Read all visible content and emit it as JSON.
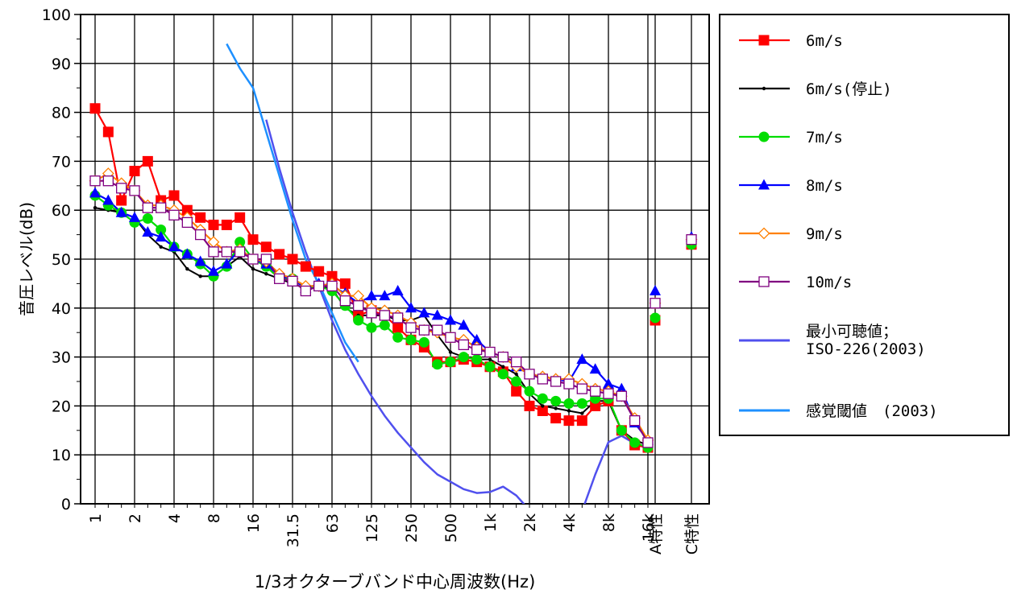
{
  "chart_data": {
    "type": "line",
    "xlabel": "1/3オクターブバンド中心周波数(Hz)",
    "ylabel": "音圧レベル(dB)",
    "ylim": [
      0,
      100
    ],
    "yticks": [
      0,
      10,
      20,
      30,
      40,
      50,
      60,
      70,
      80,
      90,
      100
    ],
    "grid": true,
    "legend_position": "right",
    "bands": [
      "1",
      "1.25",
      "1.6",
      "2",
      "2.5",
      "3.15",
      "4",
      "5",
      "6.3",
      "8",
      "10",
      "12.5",
      "16",
      "20",
      "25",
      "31.5",
      "40",
      "50",
      "63",
      "80",
      "100",
      "125",
      "160",
      "200",
      "250",
      "315",
      "400",
      "500",
      "630",
      "800",
      "1k",
      "1.25k",
      "1.6k",
      "2k",
      "2.5k",
      "3.15k",
      "4k",
      "5k",
      "6.3k",
      "8k",
      "10k",
      "12.5k",
      "16k"
    ],
    "x_tick_labels": [
      "1",
      "2",
      "4",
      "8",
      "16",
      "31.5",
      "63",
      "125",
      "250",
      "500",
      "1k",
      "2k",
      "4k",
      "8k",
      "16k",
      "A特性",
      "C特性"
    ],
    "series": [
      {
        "name": "6m/s",
        "color": "#ff0000",
        "marker": "square-filled",
        "values": [
          80.8,
          76,
          62,
          68,
          70,
          62,
          63,
          60,
          58.5,
          57,
          57,
          58.5,
          54,
          52.5,
          51,
          50,
          48.5,
          47.5,
          46.5,
          45,
          38.5,
          39.5,
          38.5,
          36,
          33.5,
          32,
          29,
          29,
          29.5,
          29,
          28,
          27,
          23,
          20,
          19,
          17.5,
          17,
          17,
          20,
          21,
          15,
          12,
          11.5
        ],
        "weighted": {
          "A": 37.5,
          "C": 53
        }
      },
      {
        "name": "6m/s(停止)",
        "color": "#000000",
        "marker": "dot",
        "values": [
          60.5,
          60,
          59.5,
          58.5,
          55,
          52.5,
          51.5,
          48,
          46.5,
          46.5,
          48.5,
          50.5,
          48,
          47,
          46,
          45,
          44,
          44.5,
          44,
          40,
          38.5,
          38.5,
          38.5,
          37.5,
          37.5,
          38.5,
          34.5,
          31,
          30,
          29.5,
          29.5,
          28,
          26.5,
          22.5,
          20,
          19.5,
          19,
          18.5,
          21,
          21,
          15,
          13,
          12
        ],
        "weighted": {
          "A": 40.5,
          "C": 53.5
        }
      },
      {
        "name": "7m/s",
        "color": "#00dd00",
        "marker": "circle-filled",
        "values": [
          63,
          61,
          59.5,
          57.5,
          58.3,
          56,
          52.5,
          51,
          49,
          46.5,
          48.5,
          53.5,
          50,
          48.5,
          46,
          46,
          44,
          44.5,
          43.5,
          40.5,
          37.5,
          36,
          36.5,
          34,
          33.5,
          33,
          28.5,
          29,
          30,
          29.5,
          28,
          26.5,
          25,
          23,
          21.5,
          21,
          20.5,
          20.5,
          21.5,
          21.5,
          15,
          12.5,
          11.5
        ],
        "weighted": {
          "A": 38,
          "C": 53
        }
      },
      {
        "name": "8m/s",
        "color": "#0000ff",
        "marker": "triangle-filled",
        "values": [
          63.5,
          62,
          59.5,
          58.5,
          55.5,
          54.5,
          52.5,
          51,
          49.5,
          47.5,
          49,
          52,
          50,
          49,
          46.5,
          46,
          44,
          45,
          44.5,
          43,
          41,
          42.5,
          42.5,
          43.5,
          40,
          39,
          38.5,
          37.5,
          36.5,
          33.5,
          31,
          30,
          28,
          26.5,
          26,
          25.5,
          25,
          29.5,
          27.5,
          24.5,
          23.5,
          16.5,
          13
        ],
        "weighted": {
          "A": 43.5,
          "C": 54.5
        }
      },
      {
        "name": "9m/s",
        "color": "#ff8000",
        "marker": "diamond-open",
        "values": [
          66,
          67.5,
          65.5,
          64,
          61,
          61,
          60,
          58.5,
          56,
          53.5,
          51.5,
          52,
          50,
          49.5,
          47,
          46,
          44.5,
          44.5,
          45,
          42.5,
          42.5,
          40,
          39.5,
          38.5,
          37,
          35.5,
          35,
          34,
          33.5,
          32,
          31,
          30,
          28,
          26.5,
          26,
          25.5,
          25.5,
          24.5,
          23.5,
          23,
          22,
          17.5,
          13
        ],
        "weighted": {
          "A": 41,
          "C": 54
        }
      },
      {
        "name": "10m/s",
        "color": "#800080",
        "marker": "square-open",
        "values": [
          66,
          66,
          64.5,
          64,
          60.5,
          60.5,
          59,
          57.5,
          55,
          51.5,
          51.5,
          51.5,
          50,
          50,
          46,
          45.5,
          43.5,
          44.5,
          44.5,
          41.5,
          40.5,
          39,
          38.5,
          38,
          36,
          35.5,
          35.5,
          34,
          32.5,
          31.5,
          31,
          30,
          29,
          26.5,
          25.5,
          25,
          24.5,
          23.5,
          23,
          22.5,
          22,
          17,
          12.5
        ],
        "weighted": {
          "A": 41,
          "C": 54
        }
      },
      {
        "name": "最小可聴値；\nISO-226(2003)",
        "color": "#5050ee",
        "marker": "none",
        "points": [
          {
            "band": "20",
            "y": 78.5
          },
          {
            "band": "25",
            "y": 68.5
          },
          {
            "band": "31.5",
            "y": 59.5
          },
          {
            "band": "40",
            "y": 51.5
          },
          {
            "band": "50",
            "y": 44.5
          },
          {
            "band": "63",
            "y": 37.5
          },
          {
            "band": "80",
            "y": 31.5
          },
          {
            "band": "100",
            "y": 26.5
          },
          {
            "band": "125",
            "y": 22
          },
          {
            "band": "160",
            "y": 18
          },
          {
            "band": "200",
            "y": 14.5
          },
          {
            "band": "250",
            "y": 11.5
          },
          {
            "band": "315",
            "y": 8.5
          },
          {
            "band": "400",
            "y": 6
          },
          {
            "band": "500",
            "y": 4.5
          },
          {
            "band": "630",
            "y": 3
          },
          {
            "band": "800",
            "y": 2.2
          },
          {
            "band": "1k",
            "y": 2.4
          },
          {
            "band": "1.25k",
            "y": 3.5
          },
          {
            "band": "1.6k",
            "y": 1.7
          },
          {
            "band": "2k",
            "y": -1.3
          },
          {
            "band": "2.5k",
            "y": -4.2
          },
          {
            "band": "3.15k",
            "y": -6
          },
          {
            "band": "4k",
            "y": -5.4
          },
          {
            "band": "5k",
            "y": -1.5
          },
          {
            "band": "6.3k",
            "y": 6
          },
          {
            "band": "8k",
            "y": 12.6
          },
          {
            "band": "10k",
            "y": 13.9
          },
          {
            "band": "12.5k",
            "y": 12.3
          }
        ]
      },
      {
        "name": "感覚閾値　(2003)",
        "color": "#1e90ff",
        "marker": "none",
        "points": [
          {
            "band": "10",
            "y": 94
          },
          {
            "band": "12.5",
            "y": 89
          },
          {
            "band": "16",
            "y": 85
          },
          {
            "band": "20",
            "y": 76
          },
          {
            "band": "25",
            "y": 67
          },
          {
            "band": "31.5",
            "y": 58
          },
          {
            "band": "40",
            "y": 50
          },
          {
            "band": "50",
            "y": 45
          },
          {
            "band": "63",
            "y": 39
          },
          {
            "band": "80",
            "y": 33
          },
          {
            "band": "100",
            "y": 29
          }
        ]
      }
    ]
  }
}
